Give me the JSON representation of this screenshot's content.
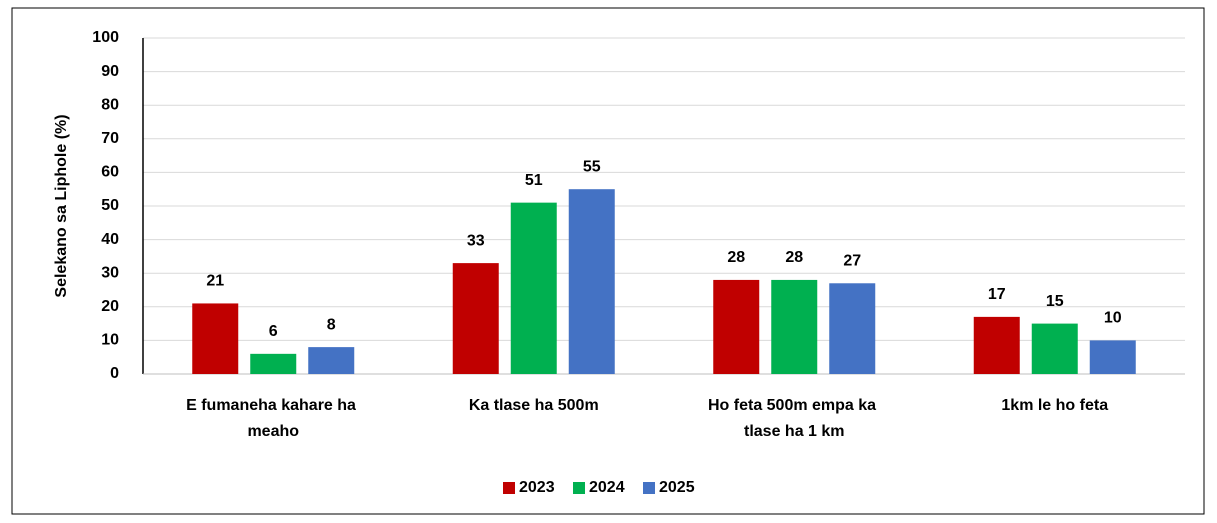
{
  "chart_data": {
    "type": "bar",
    "ylabel": "Selekano sa Liphole (%)",
    "categories": [
      "E fumaneha kahare ha meaho",
      "Ka tlase ha 500m",
      "Ho feta 500m empa ka tlase ha 1 km",
      "1km le ho feta"
    ],
    "series": [
      {
        "name": "2023",
        "color": "#c00000",
        "values": [
          21,
          33,
          28,
          17
        ]
      },
      {
        "name": "2024",
        "color": "#00b050",
        "values": [
          6,
          51,
          28,
          15
        ]
      },
      {
        "name": "2025",
        "color": "#4472c4",
        "values": [
          8,
          55,
          27,
          10
        ]
      }
    ],
    "ylim": [
      0,
      100
    ],
    "yticks": [
      0,
      10,
      20,
      30,
      40,
      50,
      60,
      70,
      80,
      90,
      100
    ],
    "grid": true,
    "legend": "bottom"
  }
}
